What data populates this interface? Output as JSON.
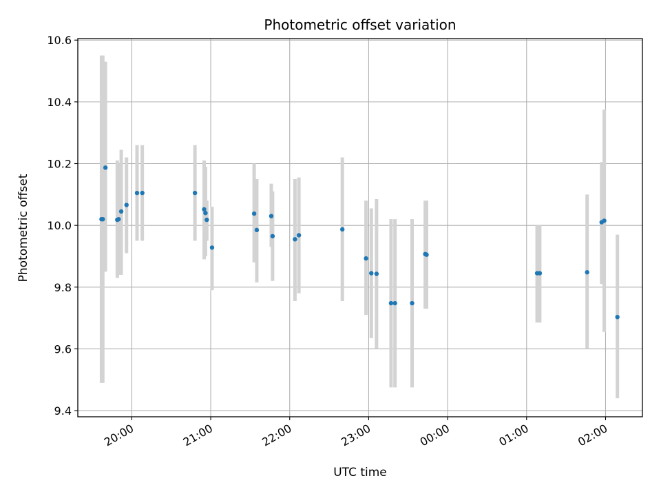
{
  "chart_data": {
    "type": "scatter",
    "title": "Photometric offset variation",
    "xlabel": "UTC time",
    "ylabel": "Photometric offset",
    "grid": true,
    "legend": "none",
    "xlim": [
      "19:19",
      "02:28"
    ],
    "ylim": [
      9.38,
      10.605
    ],
    "x_ticks": [
      "20:00",
      "21:00",
      "22:00",
      "23:00",
      "00:00",
      "01:00",
      "02:00"
    ],
    "y_ticks": [
      "9.4",
      "9.6",
      "9.8",
      "10.0",
      "10.2",
      "10.4",
      "10.6"
    ],
    "colors": {
      "point": "#1f77b4",
      "errorbar": "#d3d3d3",
      "grid": "#b0b0b0"
    },
    "points": [
      {
        "x": "19:37",
        "y": 10.02,
        "ylo": 9.49,
        "yhi": 10.55
      },
      {
        "x": "19:38",
        "y": 10.02,
        "ylo": 9.49,
        "yhi": 10.55
      },
      {
        "x": "19:40",
        "y": 10.187,
        "ylo": 9.85,
        "yhi": 10.53
      },
      {
        "x": "19:49",
        "y": 10.018,
        "ylo": 9.83,
        "yhi": 10.21
      },
      {
        "x": "19:50",
        "y": 10.02,
        "ylo": 9.84,
        "yhi": 10.2
      },
      {
        "x": "19:52",
        "y": 10.045,
        "ylo": 9.84,
        "yhi": 10.245
      },
      {
        "x": "19:56",
        "y": 10.066,
        "ylo": 9.91,
        "yhi": 10.22
      },
      {
        "x": "20:04",
        "y": 10.105,
        "ylo": 9.95,
        "yhi": 10.26
      },
      {
        "x": "20:08",
        "y": 10.105,
        "ylo": 9.95,
        "yhi": 10.26
      },
      {
        "x": "20:48",
        "y": 10.105,
        "ylo": 9.95,
        "yhi": 10.26
      },
      {
        "x": "20:55",
        "y": 10.052,
        "ylo": 9.89,
        "yhi": 10.21
      },
      {
        "x": "20:56",
        "y": 10.04,
        "ylo": 9.9,
        "yhi": 10.19
      },
      {
        "x": "20:57",
        "y": 10.018,
        "ylo": 9.95,
        "yhi": 10.08
      },
      {
        "x": "21:01",
        "y": 9.928,
        "ylo": 9.79,
        "yhi": 10.06
      },
      {
        "x": "21:33",
        "y": 10.038,
        "ylo": 9.88,
        "yhi": 10.2
      },
      {
        "x": "21:35",
        "y": 9.985,
        "ylo": 9.815,
        "yhi": 10.15
      },
      {
        "x": "21:46",
        "y": 10.03,
        "ylo": 9.93,
        "yhi": 10.135
      },
      {
        "x": "21:47",
        "y": 9.965,
        "ylo": 9.82,
        "yhi": 10.11
      },
      {
        "x": "22:04",
        "y": 9.955,
        "ylo": 9.755,
        "yhi": 10.15
      },
      {
        "x": "22:07",
        "y": 9.968,
        "ylo": 9.78,
        "yhi": 10.155
      },
      {
        "x": "22:40",
        "y": 9.987,
        "ylo": 9.755,
        "yhi": 10.22
      },
      {
        "x": "22:58",
        "y": 9.893,
        "ylo": 9.71,
        "yhi": 10.08
      },
      {
        "x": "23:02",
        "y": 9.845,
        "ylo": 9.635,
        "yhi": 10.055
      },
      {
        "x": "23:06",
        "y": 9.843,
        "ylo": 9.6,
        "yhi": 10.085
      },
      {
        "x": "23:17",
        "y": 9.748,
        "ylo": 9.475,
        "yhi": 10.02
      },
      {
        "x": "23:20",
        "y": 9.748,
        "ylo": 9.475,
        "yhi": 10.02
      },
      {
        "x": "23:33",
        "y": 9.748,
        "ylo": 9.475,
        "yhi": 10.02
      },
      {
        "x": "23:43",
        "y": 9.907,
        "ylo": 9.73,
        "yhi": 10.08
      },
      {
        "x": "23:44",
        "y": 9.905,
        "ylo": 9.73,
        "yhi": 10.08
      },
      {
        "x": "01:08",
        "y": 9.845,
        "ylo": 9.685,
        "yhi": 10.0
      },
      {
        "x": "01:10",
        "y": 9.845,
        "ylo": 9.685,
        "yhi": 10.0
      },
      {
        "x": "01:46",
        "y": 9.848,
        "ylo": 9.6,
        "yhi": 10.1
      },
      {
        "x": "01:57",
        "y": 10.01,
        "ylo": 9.81,
        "yhi": 10.205
      },
      {
        "x": "01:59",
        "y": 10.015,
        "ylo": 9.655,
        "yhi": 10.375
      },
      {
        "x": "02:09",
        "y": 9.703,
        "ylo": 9.44,
        "yhi": 9.97
      }
    ]
  }
}
